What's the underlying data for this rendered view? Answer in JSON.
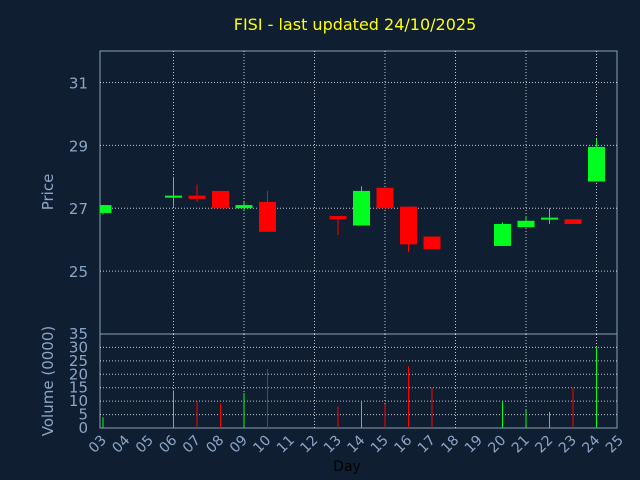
{
  "chart_data": [
    {
      "type": "candlestick",
      "title": "FISI - last updated 24/10/2025",
      "xlabel": "Day",
      "ylabel": "Price",
      "x_tick_labels": [
        "03",
        "04",
        "05",
        "06",
        "07",
        "08",
        "09",
        "10",
        "11",
        "12",
        "13",
        "14",
        "15",
        "16",
        "17",
        "18",
        "19",
        "20",
        "21",
        "22",
        "23",
        "24",
        "25"
      ],
      "ylim": [
        23,
        32
      ],
      "y_ticks": [
        25,
        27,
        29,
        31
      ],
      "grid": true,
      "colors": {
        "up": "#00ff21",
        "down": "#ff0000",
        "title": "#ffff00",
        "axis_text": "#8ca6c8",
        "grid": "#ffffff",
        "background": "#0f1f31"
      },
      "candles": [
        {
          "day": "03",
          "open": 26.85,
          "high": 27.1,
          "low": 26.8,
          "close": 27.1
        },
        {
          "day": "06",
          "open": 27.35,
          "high": 28.0,
          "low": 27.05,
          "close": 27.4
        },
        {
          "day": "07",
          "open": 27.4,
          "high": 27.75,
          "low": 27.2,
          "close": 27.3
        },
        {
          "day": "08",
          "open": 27.55,
          "high": 27.55,
          "low": 27.0,
          "close": 27.0
        },
        {
          "day": "09",
          "open": 27.0,
          "high": 27.2,
          "low": 26.95,
          "close": 27.1
        },
        {
          "day": "10",
          "open": 27.2,
          "high": 27.55,
          "low": 26.25,
          "close": 26.25
        },
        {
          "day": "13",
          "open": 26.75,
          "high": 26.75,
          "low": 26.15,
          "close": 26.65
        },
        {
          "day": "14",
          "open": 26.45,
          "high": 27.7,
          "low": 26.45,
          "close": 27.55
        },
        {
          "day": "15",
          "open": 27.65,
          "high": 27.65,
          "low": 27.0,
          "close": 27.0
        },
        {
          "day": "16",
          "open": 27.05,
          "high": 27.05,
          "low": 25.6,
          "close": 25.85
        },
        {
          "day": "17",
          "open": 26.1,
          "high": 26.1,
          "low": 25.7,
          "close": 25.7
        },
        {
          "day": "20",
          "open": 25.8,
          "high": 26.55,
          "low": 25.8,
          "close": 26.5
        },
        {
          "day": "21",
          "open": 26.4,
          "high": 26.75,
          "low": 26.4,
          "close": 26.6
        },
        {
          "day": "22",
          "open": 26.65,
          "high": 27.0,
          "low": 26.5,
          "close": 26.7
        },
        {
          "day": "23",
          "open": 26.65,
          "high": 26.65,
          "low": 26.5,
          "close": 26.5
        },
        {
          "day": "24",
          "open": 27.85,
          "high": 29.2,
          "low": 27.85,
          "close": 28.95
        }
      ]
    },
    {
      "type": "bar",
      "xlabel": "Day",
      "ylabel": "Volume (0000)",
      "x_tick_labels": [
        "03",
        "04",
        "05",
        "06",
        "07",
        "08",
        "09",
        "10",
        "11",
        "12",
        "13",
        "14",
        "15",
        "16",
        "17",
        "18",
        "19",
        "20",
        "21",
        "22",
        "23",
        "24",
        "25"
      ],
      "ylim": [
        0,
        35
      ],
      "y_ticks": [
        0,
        5,
        10,
        15,
        20,
        25,
        30,
        35
      ],
      "grid": true,
      "bars": [
        {
          "day": "03",
          "value": 4,
          "direction": "up"
        },
        {
          "day": "06",
          "value": 14,
          "direction": "up"
        },
        {
          "day": "07",
          "value": 10,
          "direction": "down"
        },
        {
          "day": "08",
          "value": 9,
          "direction": "down"
        },
        {
          "day": "09",
          "value": 13,
          "direction": "up"
        },
        {
          "day": "10",
          "value": 22,
          "direction": "down"
        },
        {
          "day": "13",
          "value": 8,
          "direction": "down"
        },
        {
          "day": "14",
          "value": 10,
          "direction": "up"
        },
        {
          "day": "15",
          "value": 9,
          "direction": "down"
        },
        {
          "day": "16",
          "value": 23,
          "direction": "down"
        },
        {
          "day": "17",
          "value": 15,
          "direction": "down"
        },
        {
          "day": "20",
          "value": 10,
          "direction": "up"
        },
        {
          "day": "21",
          "value": 7,
          "direction": "up"
        },
        {
          "day": "22",
          "value": 6,
          "direction": "up"
        },
        {
          "day": "23",
          "value": 15,
          "direction": "down"
        },
        {
          "day": "24",
          "value": 30,
          "direction": "up"
        }
      ]
    }
  ]
}
